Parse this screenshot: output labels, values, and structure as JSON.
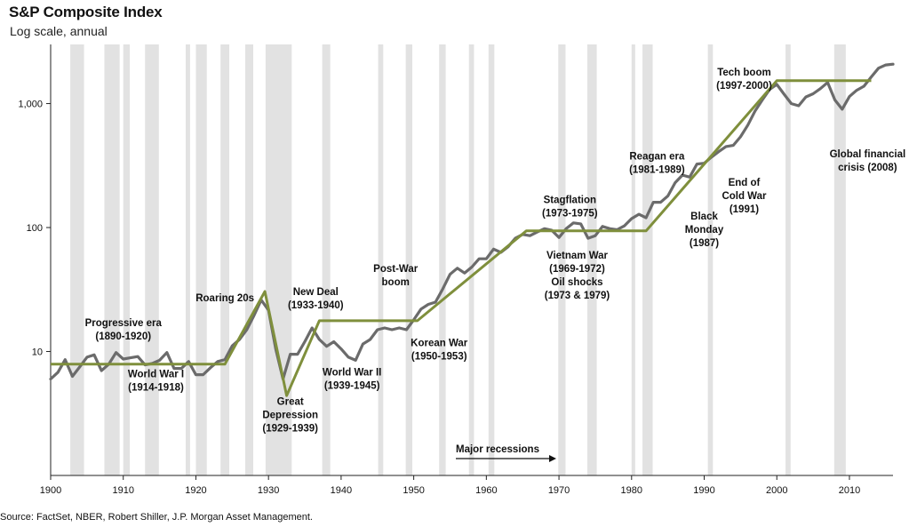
{
  "chart_data": {
    "type": "line",
    "title": "S&P Composite Index",
    "subtitle": "Log scale, annual",
    "source": "Source: FactSet, NBER, Robert Shiller, J.P. Morgan Asset Management.",
    "xlim": [
      1900,
      2016
    ],
    "ylim": [
      1,
      3000
    ],
    "yscale": "log",
    "x_ticks": [
      1900,
      1910,
      1920,
      1930,
      1940,
      1950,
      1960,
      1970,
      1980,
      1990,
      2000,
      2010
    ],
    "y_ticks": [
      {
        "value": 10,
        "label": "10"
      },
      {
        "value": 100,
        "label": "100"
      },
      {
        "value": 1000,
        "label": "1,000"
      }
    ],
    "grid": false,
    "colors": {
      "index": "#6b6b6b",
      "trend": "#7f8f3c",
      "recession": "#e2e2e2"
    },
    "series": [
      {
        "x": [
          1900,
          1901,
          1902,
          1903,
          1904,
          1905,
          1906,
          1907,
          1908,
          1909,
          1910,
          1911,
          1912,
          1913,
          1914,
          1915,
          1916,
          1917,
          1918,
          1919,
          1920,
          1921,
          1922,
          1923,
          1924,
          1925,
          1926,
          1927,
          1928,
          1929,
          1930,
          1931,
          1932,
          1933,
          1934,
          1935,
          1936,
          1937,
          1938,
          1939,
          1940,
          1941,
          1942,
          1943,
          1944,
          1945,
          1946,
          1947,
          1948,
          1949,
          1950,
          1951,
          1952,
          1953,
          1954,
          1955,
          1956,
          1957,
          1958,
          1959,
          1960,
          1961,
          1962,
          1963,
          1964,
          1965,
          1966,
          1967,
          1968,
          1969,
          1970,
          1971,
          1972,
          1973,
          1974,
          1975,
          1976,
          1977,
          1978,
          1979,
          1980,
          1981,
          1982,
          1983,
          1984,
          1985,
          1986,
          1987,
          1988,
          1989,
          1990,
          1991,
          1992,
          1993,
          1994,
          1995,
          1996,
          1997,
          1998,
          1999,
          2000,
          2001,
          2002,
          2003,
          2004,
          2005,
          2006,
          2007,
          2008,
          2009,
          2010,
          2011,
          2012,
          2013,
          2014,
          2015,
          2016
        ],
        "values": [
          6.0,
          6.8,
          8.6,
          6.3,
          7.5,
          9.0,
          9.4,
          7.0,
          7.9,
          9.8,
          8.7,
          8.9,
          9.1,
          7.8,
          8.0,
          8.5,
          9.8,
          7.3,
          7.3,
          8.3,
          6.5,
          6.5,
          7.4,
          8.3,
          8.6,
          11.1,
          12.5,
          15.0,
          19.5,
          26.0,
          21.5,
          10.5,
          6.0,
          9.5,
          9.5,
          12.0,
          15.5,
          12.5,
          11.0,
          12.0,
          10.5,
          9.0,
          8.5,
          11.5,
          12.5,
          15.0,
          15.5,
          15.0,
          15.5,
          15.0,
          18.0,
          22.0,
          24.0,
          25.0,
          32.0,
          42.0,
          47.0,
          43.0,
          48.0,
          56.0,
          56.0,
          67.0,
          63.0,
          70.0,
          82.0,
          88.0,
          86.0,
          92.0,
          98.0,
          95.0,
          83.0,
          98.0,
          109.0,
          107.0,
          82.0,
          86.0,
          102.0,
          98.0,
          96.0,
          103.0,
          118.0,
          128.0,
          120.0,
          160.0,
          160.0,
          180.0,
          230.0,
          265.0,
          255.0,
          325.0,
          330.0,
          370.0,
          410.0,
          450.0,
          460.0,
          540.0,
          670.0,
          870.0,
          1070.0,
          1300.0,
          1430.0,
          1190.0,
          1000.0,
          960.0,
          1130.0,
          1200.0,
          1320.0,
          1480.0,
          1070.0,
          900.0,
          1140.0,
          1280.0,
          1380.0,
          1640.0,
          1930.0,
          2050.0,
          2080.0
        ]
      }
    ],
    "trend_lines": {
      "x": [
        1900,
        1924,
        1929.5,
        1932.5,
        1937,
        1950.5,
        1965.5,
        1982,
        2000,
        2013
      ],
      "values": [
        7.9,
        7.9,
        30.5,
        4.4,
        17.7,
        17.7,
        94,
        94,
        1530,
        1530
      ]
    },
    "recessions": [
      [
        1902.7,
        1904.6
      ],
      [
        1907.4,
        1909.5
      ],
      [
        1910.0,
        1910.9
      ],
      [
        1913.0,
        1914.9
      ],
      [
        1918.6,
        1919.2
      ],
      [
        1920.0,
        1921.5
      ],
      [
        1923.4,
        1924.6
      ],
      [
        1926.8,
        1927.9
      ],
      [
        1929.6,
        1933.2
      ],
      [
        1937.4,
        1938.5
      ],
      [
        1945.1,
        1945.8
      ],
      [
        1948.9,
        1949.8
      ],
      [
        1953.5,
        1954.4
      ],
      [
        1957.6,
        1958.3
      ],
      [
        1960.3,
        1961.1
      ],
      [
        1969.9,
        1970.9
      ],
      [
        1973.9,
        1975.2
      ],
      [
        1980.0,
        1980.5
      ],
      [
        1981.5,
        1982.9
      ],
      [
        1990.5,
        1991.2
      ],
      [
        2001.2,
        2001.9
      ],
      [
        2007.9,
        2009.5
      ]
    ],
    "annotations": [
      {
        "lines": [
          "Progressive era",
          "(1890-1920)"
        ],
        "anchor": [
          1910,
          16
        ]
      },
      {
        "lines": [
          "World War I",
          "(1914-1918)"
        ],
        "anchor": [
          1914.5,
          6.2
        ]
      },
      {
        "lines": [
          "Roaring 20s"
        ],
        "anchor": [
          1924,
          25.5
        ]
      },
      {
        "lines": [
          "Great",
          "Depression",
          "(1929-1939)"
        ],
        "anchor": [
          1933,
          3.7
        ]
      },
      {
        "lines": [
          "New Deal",
          "(1933-1940)"
        ],
        "anchor": [
          1936.5,
          28.5
        ]
      },
      {
        "lines": [
          "World War II",
          "(1939-1945)"
        ],
        "anchor": [
          1941.5,
          6.4
        ]
      },
      {
        "lines": [
          "Post-War",
          "boom"
        ],
        "anchor": [
          1947.5,
          44
        ]
      },
      {
        "lines": [
          "Korean War",
          "(1950-1953)"
        ],
        "anchor": [
          1953.5,
          11
        ]
      },
      {
        "lines": [
          "Stagflation",
          "(1973-1975)"
        ],
        "anchor": [
          1971.5,
          158
        ]
      },
      {
        "lines": [
          "Vietnam War",
          "(1969-1972)",
          "Oil shocks",
          "(1973 & 1979)"
        ],
        "anchor": [
          1972.5,
          56
        ]
      },
      {
        "lines": [
          "Reagan era",
          "(1981-1989)"
        ],
        "anchor": [
          1983.5,
          355
        ]
      },
      {
        "lines": [
          "Black",
          "Monday",
          "(1987)"
        ],
        "anchor": [
          1990,
          116
        ]
      },
      {
        "lines": [
          "End of",
          "Cold War",
          "(1991)"
        ],
        "anchor": [
          1995.5,
          217
        ]
      },
      {
        "lines": [
          "Tech boom",
          "(1997-2000)"
        ],
        "anchor": [
          1995.5,
          1680
        ]
      },
      {
        "lines": [
          "Global financial",
          "crisis (2008)"
        ],
        "anchor": [
          2012.5,
          368
        ]
      }
    ],
    "recession_label": "Major recessions"
  }
}
